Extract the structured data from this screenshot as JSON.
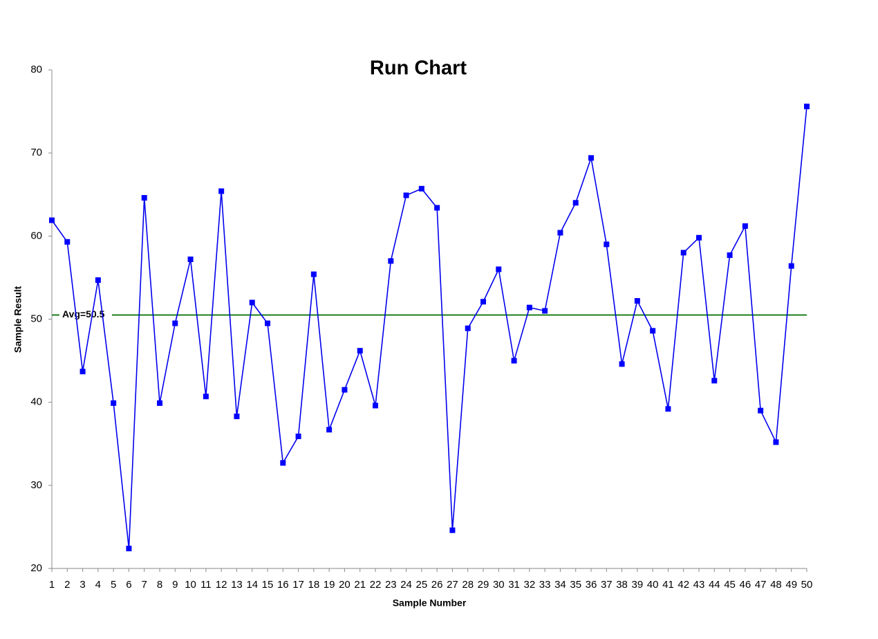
{
  "chart_data": {
    "type": "line",
    "title": "Run Chart",
    "x_label": "Sample Number",
    "y_label": "Sample Result",
    "x": [
      1,
      2,
      3,
      4,
      5,
      6,
      7,
      8,
      9,
      10,
      11,
      12,
      13,
      14,
      15,
      16,
      17,
      18,
      19,
      20,
      21,
      22,
      23,
      24,
      25,
      26,
      27,
      28,
      29,
      30,
      31,
      32,
      33,
      34,
      35,
      36,
      37,
      38,
      39,
      40,
      41,
      42,
      43,
      44,
      45,
      46,
      47,
      48,
      49,
      50
    ],
    "series": [
      {
        "name": "Sample Result",
        "color": "#0000ee",
        "marker_color": "#0000ff",
        "values": [
          61.9,
          59.3,
          43.7,
          54.7,
          39.9,
          22.4,
          64.6,
          39.9,
          49.5,
          57.2,
          40.7,
          65.4,
          38.3,
          52.0,
          49.5,
          32.7,
          35.9,
          55.4,
          36.7,
          41.5,
          46.2,
          39.6,
          57.0,
          64.9,
          65.7,
          63.4,
          24.6,
          48.9,
          52.1,
          56.0,
          45.0,
          51.4,
          51.0,
          60.4,
          64.0,
          69.4,
          59.0,
          44.6,
          52.2,
          48.6,
          39.2,
          58.0,
          59.8,
          42.6,
          57.7,
          61.2,
          39.0,
          35.2,
          56.4,
          75.6
        ]
      }
    ],
    "average": {
      "value": 50.5,
      "label": "Avg=50.5",
      "color": "#1a7f1a"
    },
    "xlim": [
      1,
      50
    ],
    "xticks": [
      1,
      2,
      3,
      4,
      5,
      6,
      7,
      8,
      9,
      10,
      11,
      12,
      13,
      14,
      15,
      16,
      17,
      18,
      19,
      20,
      21,
      22,
      23,
      24,
      25,
      26,
      27,
      28,
      29,
      30,
      31,
      32,
      33,
      34,
      35,
      36,
      37,
      38,
      39,
      40,
      41,
      42,
      43,
      44,
      45,
      46,
      47,
      48,
      49,
      50
    ],
    "ylim": [
      20,
      80
    ],
    "yticks": [
      20,
      30,
      40,
      50,
      60,
      70,
      80
    ],
    "grid": false
  }
}
